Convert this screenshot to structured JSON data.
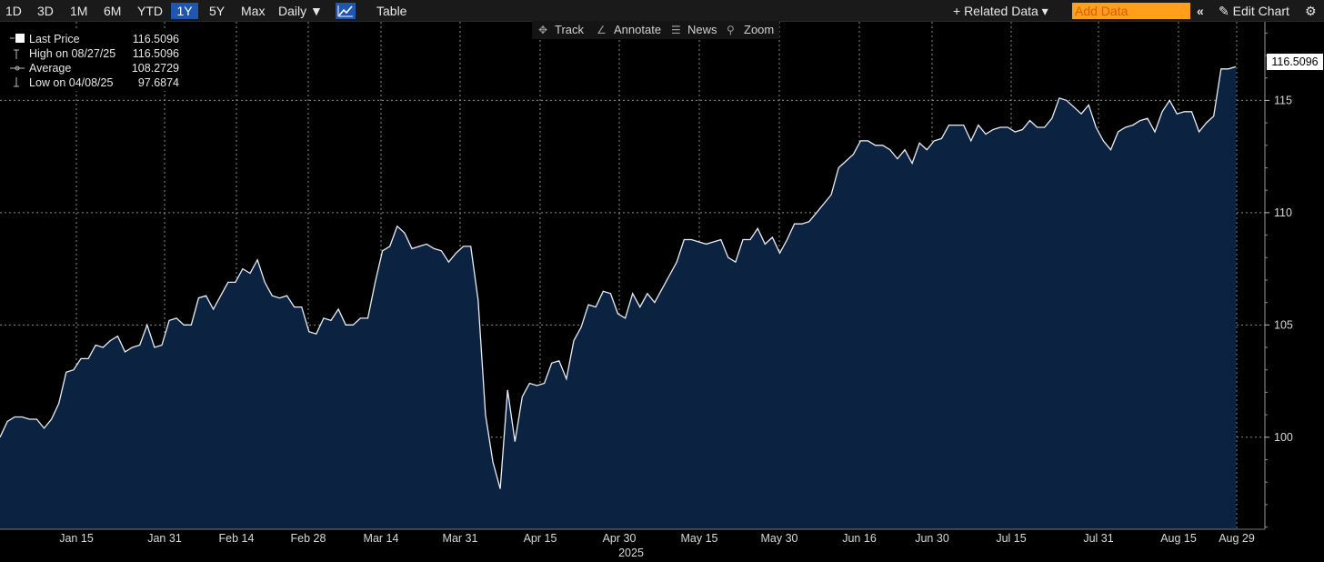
{
  "toolbar": {
    "periods": [
      "1D",
      "3D",
      "1M",
      "6M",
      "YTD",
      "1Y",
      "5Y",
      "Max"
    ],
    "active_period": "1Y",
    "frequency": "Daily ▼",
    "table_label": "Table",
    "related_data": "+ Related Data ▾",
    "add_data_placeholder": "Add Data",
    "edit_chart": "Edit Chart",
    "nav_back": "«"
  },
  "subtoolbar": {
    "track": "Track",
    "annotate": "Annotate",
    "news": "News",
    "zoom": "Zoom"
  },
  "legend": {
    "last_price_label": "Last Price",
    "last_price_value": "116.5096",
    "high_label": "High on 08/27/25",
    "high_value": "116.5096",
    "average_label": "Average",
    "average_value": "108.2729",
    "low_label": "Low on 04/08/25",
    "low_value": "97.6874"
  },
  "last_price_box": "116.5096",
  "colors": {
    "background": "#000000",
    "area_fill": "#0b2340",
    "line": "#e8eef7",
    "accent": "#1f56b0",
    "add_data": "#ff9f1a"
  },
  "chart_data": {
    "type": "area",
    "ylim": [
      95.9,
      118.5
    ],
    "yticks": [
      100,
      105,
      110,
      115
    ],
    "x_tick_labels": [
      "Jan 15",
      "Jan 31",
      "Feb 14",
      "Feb 28",
      "Mar 14",
      "Mar 31",
      "Apr 15",
      "Apr 30",
      "May 15",
      "May 30",
      "Jun 16",
      "Jun 30",
      "Jul 15",
      "Jul 31",
      "Aug 15",
      "Aug 29"
    ],
    "year_label": "2025",
    "grid": true,
    "series": [
      {
        "values": [
          100.0,
          100.7,
          100.9,
          100.9,
          100.8,
          100.8,
          100.4,
          100.8,
          101.5,
          102.9,
          103.0,
          103.5,
          103.5,
          104.1,
          104.0,
          104.3,
          104.5,
          103.8,
          104.0,
          104.1,
          105.0,
          104.0,
          104.1,
          105.2,
          105.3,
          105.0,
          105.0,
          106.2,
          106.3,
          105.7,
          106.3,
          106.9,
          106.9,
          107.5,
          107.3,
          107.9,
          106.9,
          106.3,
          106.2,
          106.3,
          105.8,
          105.8,
          104.7,
          104.6,
          105.3,
          105.2,
          105.7,
          105.0,
          105.0,
          105.3,
          105.3,
          106.9,
          108.3,
          108.5,
          109.4,
          109.1,
          108.4,
          108.5,
          108.6,
          108.4,
          108.3,
          107.8,
          108.2,
          108.5,
          108.5,
          106.1,
          101.0,
          98.9,
          97.7,
          102.1,
          99.8,
          101.8,
          102.4,
          102.3,
          102.4,
          103.3,
          103.4,
          102.6,
          104.3,
          104.9,
          105.9,
          105.8,
          106.5,
          106.4,
          105.5,
          105.3,
          106.4,
          105.8,
          106.4,
          106.0,
          106.6,
          107.2,
          107.8,
          108.8,
          108.8,
          108.7,
          108.6,
          108.7,
          108.8,
          108.0,
          107.8,
          108.8,
          108.8,
          109.3,
          108.6,
          108.9,
          108.2,
          108.8,
          109.5,
          109.5,
          109.6,
          110.0,
          110.4,
          110.8,
          112.0,
          112.3,
          112.6,
          113.2,
          113.2,
          113.0,
          113.0,
          112.8,
          112.4,
          112.8,
          112.2,
          113.1,
          112.8,
          113.2,
          113.3,
          113.9,
          113.9,
          113.9,
          113.2,
          113.9,
          113.5,
          113.7,
          113.8,
          113.8,
          113.6,
          113.7,
          114.1,
          113.8,
          113.8,
          114.2,
          115.1,
          115.0,
          114.7,
          114.4,
          114.8,
          113.8,
          113.2,
          112.8,
          113.6,
          113.8,
          113.9,
          114.1,
          114.2,
          113.6,
          114.5,
          115.0,
          114.4,
          114.5,
          114.5,
          113.6,
          114.0,
          114.3,
          116.4,
          116.4,
          116.5
        ]
      }
    ]
  }
}
